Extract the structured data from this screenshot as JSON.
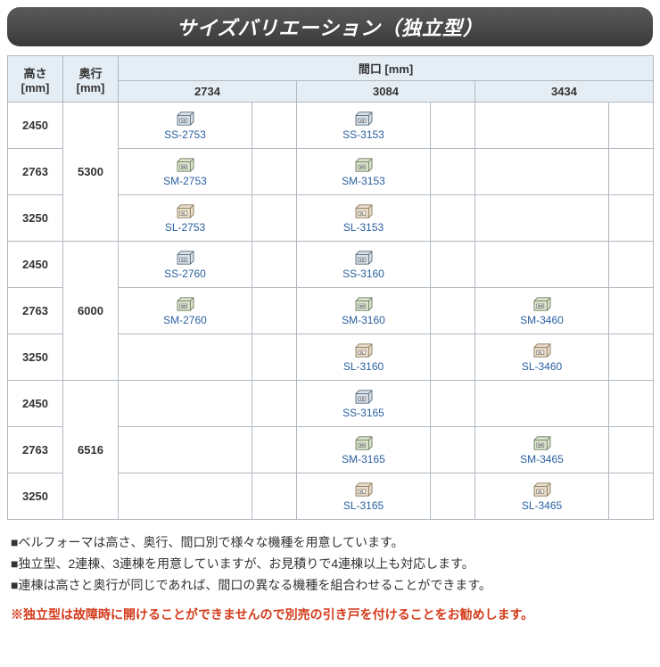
{
  "title": "サイズバリエーション（独立型）",
  "table": {
    "header_top": "間口 [mm]",
    "header_height": "高さ [mm]",
    "header_depth": "奥行 [mm]",
    "widths": [
      "2734",
      "3084",
      "3434"
    ],
    "groups": [
      {
        "depth": "5300",
        "rows": [
          {
            "height": "2450",
            "cells": [
              {
                "label": "SS-2753",
                "icon": "ss"
              },
              {
                "label": "SS-3153",
                "icon": "ss"
              },
              null
            ]
          },
          {
            "height": "2763",
            "cells": [
              {
                "label": "SM-2753",
                "icon": "sm"
              },
              {
                "label": "SM-3153",
                "icon": "sm"
              },
              null
            ]
          },
          {
            "height": "3250",
            "cells": [
              {
                "label": "SL-2753",
                "icon": "sl"
              },
              {
                "label": "SL-3153",
                "icon": "sl"
              },
              null
            ]
          }
        ]
      },
      {
        "depth": "6000",
        "rows": [
          {
            "height": "2450",
            "cells": [
              {
                "label": "SS-2760",
                "icon": "ss"
              },
              {
                "label": "SS-3160",
                "icon": "ss"
              },
              null
            ]
          },
          {
            "height": "2763",
            "cells": [
              {
                "label": "SM-2760",
                "icon": "sm"
              },
              {
                "label": "SM-3160",
                "icon": "sm"
              },
              {
                "label": "SM-3460",
                "icon": "sm"
              }
            ]
          },
          {
            "height": "3250",
            "cells": [
              null,
              {
                "label": "SL-3160",
                "icon": "sl"
              },
              {
                "label": "SL-3460",
                "icon": "sl"
              }
            ]
          }
        ]
      },
      {
        "depth": "6516",
        "rows": [
          {
            "height": "2450",
            "cells": [
              null,
              {
                "label": "SS-3165",
                "icon": "ss"
              },
              null
            ]
          },
          {
            "height": "2763",
            "cells": [
              null,
              {
                "label": "SM-3165",
                "icon": "sm"
              },
              {
                "label": "SM-3465",
                "icon": "sm"
              }
            ]
          },
          {
            "height": "3250",
            "cells": [
              null,
              {
                "label": "SL-3165",
                "icon": "sl"
              },
              {
                "label": "SL-3465",
                "icon": "sl"
              }
            ]
          }
        ]
      }
    ]
  },
  "icons": {
    "ss": {
      "tag": "SS",
      "fill": "#d8e0e8",
      "stroke": "#5a6a7a"
    },
    "sm": {
      "tag": "SM",
      "fill": "#dce4d0",
      "stroke": "#6a7a5a"
    },
    "sl": {
      "tag": "SL",
      "fill": "#e8dccc",
      "stroke": "#8a7a5a"
    }
  },
  "notes": [
    "■ベルフォーマは高さ、奥行、間口別で様々な機種を用意しています。",
    "■独立型、2連棟、3連棟を用意していますが、お見積りで4連棟以上も対応します。",
    "■連棟は高さと奥行が同じであれば、間口の異なる機種を組合わせることができます。"
  ],
  "warning": "※独立型は故障時に開けることができませんので別売の引き戸を付けることをお勧めします。"
}
